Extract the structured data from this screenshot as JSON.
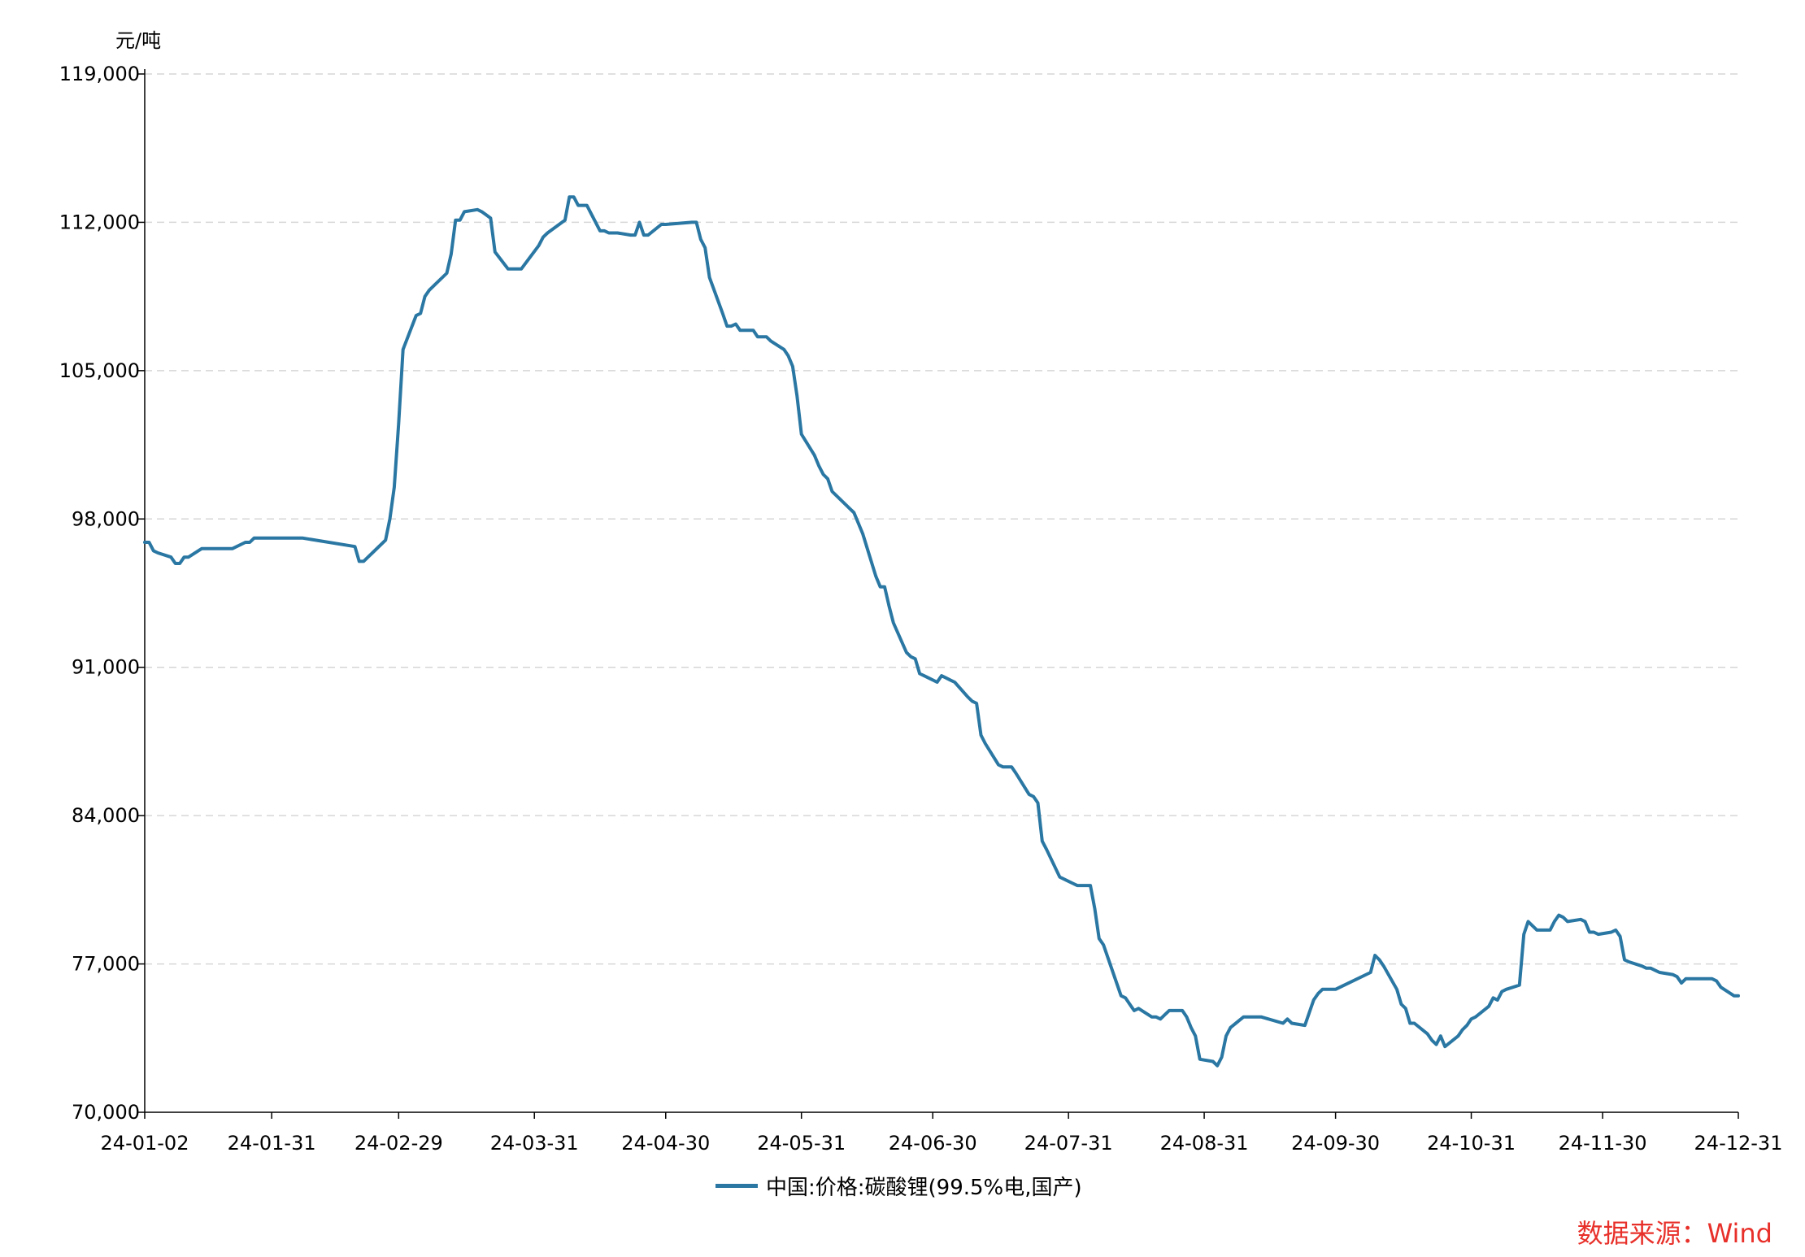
{
  "colors": {
    "series": "#2a77a3",
    "source": "#e8302a",
    "grid": "#d6d6d6",
    "axis": "#000000"
  },
  "chart_data": {
    "type": "line",
    "ylabel": "元/吨",
    "ylim": [
      70000,
      119000
    ],
    "yticks": [
      "70,000",
      "77,000",
      "84,000",
      "91,000",
      "98,000",
      "105,000",
      "112,000",
      "119,000"
    ],
    "ytick_values": [
      70000,
      77000,
      84000,
      91000,
      98000,
      105000,
      112000,
      119000
    ],
    "xlim": [
      "2024-01-02",
      "2024-12-31"
    ],
    "xticks": [
      "24-01-02",
      "24-01-31",
      "24-02-29",
      "24-03-31",
      "24-04-30",
      "24-05-31",
      "24-06-30",
      "24-07-31",
      "24-08-31",
      "24-09-30",
      "24-10-31",
      "24-11-30",
      "24-12-31"
    ],
    "xtick_dates": [
      "2024-01-02",
      "2024-01-31",
      "2024-02-29",
      "2024-03-31",
      "2024-04-30",
      "2024-05-31",
      "2024-06-30",
      "2024-07-31",
      "2024-08-31",
      "2024-09-30",
      "2024-10-31",
      "2024-11-30",
      "2024-12-31"
    ],
    "grid": "horizontal dashed",
    "legend_position": "bottom-center",
    "series": [
      {
        "name": "中国:价格:碳酸锂(99.5%电,国产)",
        "x": [
          "2024-01-02",
          "2024-01-03",
          "2024-01-04",
          "2024-01-05",
          "2024-01-08",
          "2024-01-09",
          "2024-01-10",
          "2024-01-11",
          "2024-01-12",
          "2024-01-15",
          "2024-01-16",
          "2024-01-19",
          "2024-01-22",
          "2024-01-25",
          "2024-01-26",
          "2024-01-27",
          "2024-01-31",
          "2024-02-07",
          "2024-02-19",
          "2024-02-20",
          "2024-02-21",
          "2024-02-22",
          "2024-02-23",
          "2024-02-26",
          "2024-02-27",
          "2024-02-28",
          "2024-02-29",
          "2024-03-01",
          "2024-03-04",
          "2024-03-05",
          "2024-03-06",
          "2024-03-07",
          "2024-03-08",
          "2024-03-11",
          "2024-03-12",
          "2024-03-13",
          "2024-03-14",
          "2024-03-15",
          "2024-03-18",
          "2024-03-19",
          "2024-03-21",
          "2024-03-22",
          "2024-03-25",
          "2024-03-26",
          "2024-03-27",
          "2024-03-28",
          "2024-04-01",
          "2024-04-02",
          "2024-04-03",
          "2024-04-07",
          "2024-04-08",
          "2024-04-09",
          "2024-04-10",
          "2024-04-11",
          "2024-04-12",
          "2024-04-15",
          "2024-04-16",
          "2024-04-17",
          "2024-04-18",
          "2024-04-19",
          "2024-04-22",
          "2024-04-23",
          "2024-04-24",
          "2024-04-25",
          "2024-04-26",
          "2024-04-29",
          "2024-04-30",
          "2024-05-06",
          "2024-05-07",
          "2024-05-08",
          "2024-05-09",
          "2024-05-10",
          "2024-05-13",
          "2024-05-14",
          "2024-05-15",
          "2024-05-16",
          "2024-05-17",
          "2024-05-20",
          "2024-05-21",
          "2024-05-22",
          "2024-05-23",
          "2024-05-24",
          "2024-05-27",
          "2024-05-28",
          "2024-05-29",
          "2024-05-30",
          "2024-05-31",
          "2024-06-03",
          "2024-06-04",
          "2024-06-05",
          "2024-06-06",
          "2024-06-07",
          "2024-06-11",
          "2024-06-12",
          "2024-06-13",
          "2024-06-14",
          "2024-06-17",
          "2024-06-18",
          "2024-06-19",
          "2024-06-20",
          "2024-06-21",
          "2024-06-24",
          "2024-06-25",
          "2024-06-26",
          "2024-06-27",
          "2024-06-28",
          "2024-07-01",
          "2024-07-02",
          "2024-07-03",
          "2024-07-04",
          "2024-07-05",
          "2024-07-08",
          "2024-07-09",
          "2024-07-10",
          "2024-07-11",
          "2024-07-12",
          "2024-07-15",
          "2024-07-16",
          "2024-07-17",
          "2024-07-18",
          "2024-07-19",
          "2024-07-22",
          "2024-07-23",
          "2024-07-24",
          "2024-07-25",
          "2024-07-26",
          "2024-07-29",
          "2024-07-30",
          "2024-07-31",
          "2024-08-01",
          "2024-08-02",
          "2024-08-05",
          "2024-08-06",
          "2024-08-07",
          "2024-08-08",
          "2024-08-09",
          "2024-08-12",
          "2024-08-13",
          "2024-08-14",
          "2024-08-15",
          "2024-08-16",
          "2024-08-19",
          "2024-08-20",
          "2024-08-21",
          "2024-08-22",
          "2024-08-23",
          "2024-08-26",
          "2024-08-27",
          "2024-08-28",
          "2024-08-29",
          "2024-08-30",
          "2024-09-02",
          "2024-09-03",
          "2024-09-04",
          "2024-09-05",
          "2024-09-06",
          "2024-09-09",
          "2024-09-10",
          "2024-09-11",
          "2024-09-12",
          "2024-09-13",
          "2024-09-18",
          "2024-09-19",
          "2024-09-20",
          "2024-09-23",
          "2024-09-24",
          "2024-09-25",
          "2024-09-26",
          "2024-09-27",
          "2024-09-30",
          "2024-10-08",
          "2024-10-09",
          "2024-10-10",
          "2024-10-11",
          "2024-10-14",
          "2024-10-15",
          "2024-10-16",
          "2024-10-17",
          "2024-10-18",
          "2024-10-21",
          "2024-10-22",
          "2024-10-23",
          "2024-10-24",
          "2024-10-25",
          "2024-10-28",
          "2024-10-29",
          "2024-10-30",
          "2024-10-31",
          "2024-11-01",
          "2024-11-04",
          "2024-11-05",
          "2024-11-06",
          "2024-11-07",
          "2024-11-08",
          "2024-11-11",
          "2024-11-12",
          "2024-11-13",
          "2024-11-14",
          "2024-11-15",
          "2024-11-18",
          "2024-11-19",
          "2024-11-20",
          "2024-11-21",
          "2024-11-22",
          "2024-11-25",
          "2024-11-26",
          "2024-11-27",
          "2024-11-28",
          "2024-11-29",
          "2024-12-02",
          "2024-12-03",
          "2024-12-04",
          "2024-12-05",
          "2024-12-06",
          "2024-12-09",
          "2024-12-10",
          "2024-12-11",
          "2024-12-12",
          "2024-12-13",
          "2024-12-16",
          "2024-12-17",
          "2024-12-18",
          "2024-12-19",
          "2024-12-20",
          "2024-12-23",
          "2024-12-24",
          "2024-12-25",
          "2024-12-26",
          "2024-12-27",
          "2024-12-30",
          "2024-12-31"
        ],
        "values": [
          96900,
          96900,
          96500,
          96400,
          96200,
          95900,
          95900,
          96200,
          96200,
          96600,
          96600,
          96600,
          96600,
          96900,
          96900,
          97100,
          97100,
          97100,
          96700,
          96000,
          96000,
          96200,
          96400,
          97000,
          98000,
          99500,
          102500,
          106000,
          107600,
          107700,
          108500,
          108800,
          109000,
          109600,
          110500,
          112100,
          112100,
          112500,
          112600,
          112500,
          112200,
          110600,
          109800,
          109800,
          109800,
          109800,
          110900,
          111300,
          111500,
          112100,
          113200,
          113200,
          112800,
          112800,
          112800,
          111600,
          111600,
          111500,
          111500,
          111500,
          111400,
          111400,
          112000,
          111400,
          111400,
          111900,
          111900,
          112000,
          112000,
          111200,
          110800,
          109400,
          107700,
          107100,
          107100,
          107200,
          106900,
          106900,
          106600,
          106600,
          106600,
          106400,
          106000,
          105700,
          105200,
          103800,
          102000,
          101000,
          100500,
          100100,
          99900,
          99300,
          98500,
          98300,
          97800,
          97300,
          95300,
          94800,
          94800,
          93900,
          93100,
          91700,
          91500,
          91400,
          90700,
          90600,
          90300,
          90600,
          90500,
          90400,
          90300,
          89600,
          89400,
          89300,
          87800,
          87400,
          86400,
          86300,
          86300,
          86300,
          86000,
          85000,
          84900,
          84600,
          82800,
          82400,
          81100,
          81000,
          80900,
          80800,
          80700,
          80700,
          79600,
          78200,
          77900,
          77300,
          75500,
          75400,
          75100,
          74800,
          74900,
          74500,
          74500,
          74400,
          74600,
          74800,
          74800,
          74500,
          74000,
          73600,
          72500,
          72400,
          72200,
          72600,
          73600,
          74000,
          74500,
          74500,
          74500,
          74500,
          74500,
          74200,
          74400,
          74200,
          74100,
          74700,
          75300,
          75600,
          75800,
          75800,
          76600,
          77400,
          77200,
          76900,
          75800,
          75100,
          74900,
          74200,
          74200,
          73700,
          73400,
          73200,
          73600,
          73100,
          73600,
          73900,
          74100,
          74400,
          74500,
          75000,
          75400,
          75300,
          75700,
          75800,
          76000,
          78400,
          79000,
          78800,
          78600,
          78600,
          79000,
          79300,
          79200,
          79000,
          79100,
          79000,
          78500,
          78500,
          78400,
          78500,
          78600,
          78300,
          77200,
          77100,
          76900,
          76800,
          76800,
          76700,
          76600,
          76500,
          76400,
          76100,
          76300,
          76300,
          76300,
          76300,
          76300,
          76200,
          75900,
          75500,
          75500
        ]
      }
    ]
  },
  "source": "数据来源：Wind"
}
